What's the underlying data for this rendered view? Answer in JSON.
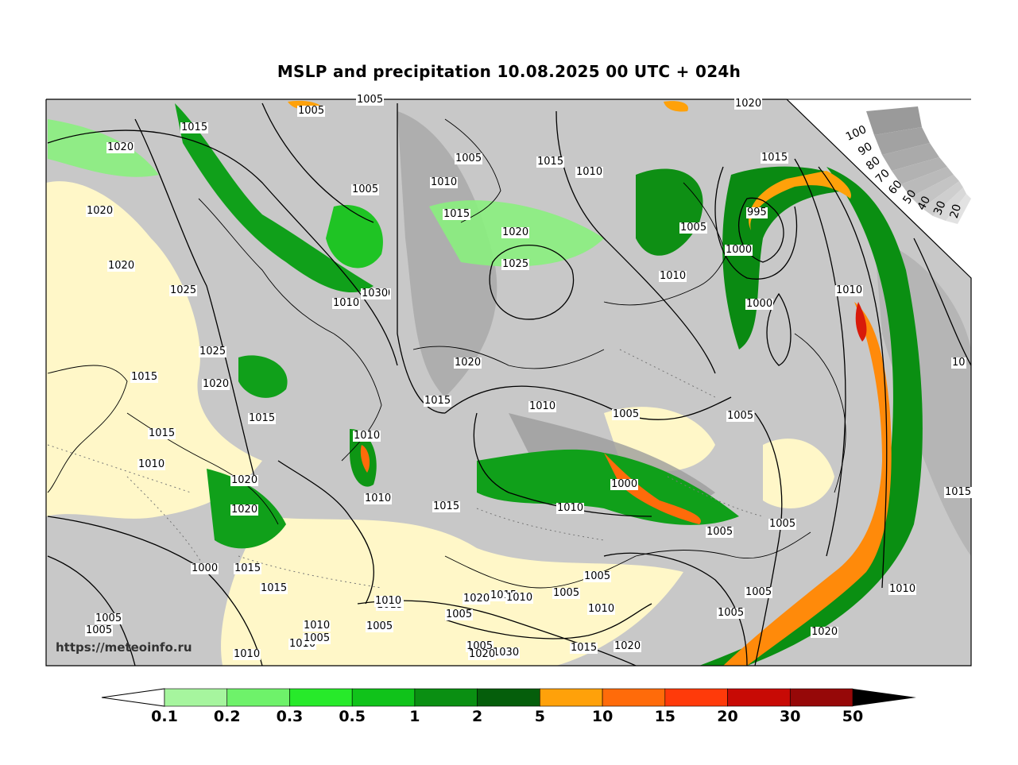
{
  "title": "MSLP and precipitation 10.08.2025 00 UTC + 024h",
  "watermark": "https://meteoinfo.ru",
  "cloud_scale": {
    "labels": [
      "100",
      "90",
      "80",
      "70",
      "60",
      "50",
      "40",
      "30",
      "20"
    ]
  },
  "colorbar": {
    "ticks": [
      "0.1",
      "0.2",
      "0.3",
      "0.5",
      "1",
      "2",
      "5",
      "10",
      "15",
      "20",
      "30",
      "50"
    ],
    "colors": [
      "#a6f59e",
      "#6ef26a",
      "#27ea2a",
      "#10c31a",
      "#0a8f12",
      "#055e0b",
      "#ffa10a",
      "#ff6b0a",
      "#ff3a0a",
      "#c80a05",
      "#960808"
    ]
  },
  "isobar_labels": [
    "1015",
    "1005",
    "1005",
    "1020",
    "1020",
    "1020",
    "1020",
    "1025",
    "1025",
    "1015",
    "1020",
    "1015",
    "1015",
    "1010",
    "1020",
    "1020",
    "1000",
    "1015",
    "1015",
    "1005",
    "1005",
    "1010",
    "1010",
    "1005",
    "1010",
    "1010",
    "1005",
    "1005",
    "1015",
    "1010",
    "1010",
    "1030",
    "1020",
    "1010",
    "1015",
    "1010",
    "1020",
    "1025",
    "1020",
    "1015",
    "1010",
    "1005",
    "1015",
    "1005",
    "1010",
    "1010",
    "1000",
    "1015",
    "1005",
    "1005",
    "1020",
    "1015",
    "1010",
    "1005",
    "1030",
    "1015",
    "1020",
    "1010",
    "1005",
    "1010",
    "1015",
    "995",
    "1000",
    "1000",
    "1010",
    "1005",
    "1005",
    "1005",
    "1005",
    "1005",
    "1005",
    "1015",
    "1010",
    "10",
    "1020",
    "1010"
  ],
  "colors": {
    "land": "#fff7c8",
    "cloud_light": "#d8d8d8",
    "cloud_dark": "#9a9a9a",
    "isobar": "#000000"
  }
}
